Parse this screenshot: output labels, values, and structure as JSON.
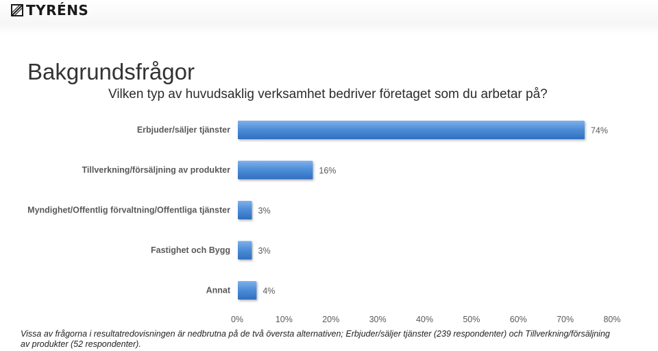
{
  "header": {
    "logo_text": "TYRÉNS"
  },
  "title": "Bakgrundsfrågor",
  "subtitle": "Vilken typ av huvudsaklig verksamhet bedriver företaget som du arbetar på?",
  "chart_data": {
    "type": "bar",
    "orientation": "horizontal",
    "categories": [
      "Erbjuder/säljer tjänster",
      "Tillverkning/försäljning av produkter",
      "Myndighet/Offentlig förvaltning/Offentliga tjänster",
      "Fastighet och Bygg",
      "Annat"
    ],
    "values": [
      74,
      16,
      3,
      3,
      4
    ],
    "value_labels": [
      "74%",
      "16%",
      "3%",
      "3%",
      "4%"
    ],
    "xlim": [
      0,
      80
    ],
    "xticks": [
      "0%",
      "10%",
      "20%",
      "30%",
      "40%",
      "50%",
      "60%",
      "70%",
      "80%"
    ],
    "grid": false,
    "bar_color": "#4f8fd8"
  },
  "footnote": "Vissa av frågorna i resultatredovisningen är nedbrutna på de två översta alternativen; Erbjuder/säljer tjänster (239 respondenter) och Tillverkning/försäljning av produkter (52 respondenter)."
}
